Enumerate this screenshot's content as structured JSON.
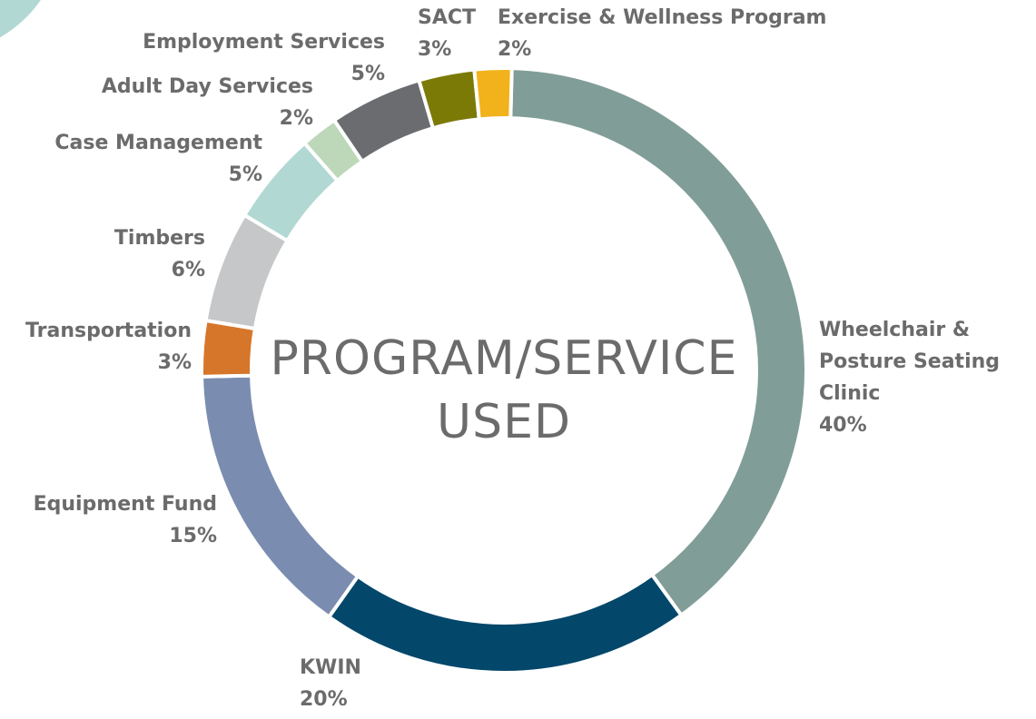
{
  "chart_data": {
    "type": "donut",
    "title": "PROGRAM/SERVICE USED",
    "categories": [
      "Wheelchair & Posture Seating Clinic",
      "KWIN",
      "Equipment Fund",
      "Transportation",
      "Timbers",
      "Case Management",
      "Adult Day Services",
      "Employment Services",
      "SACT",
      "Exercise & Wellness Program"
    ],
    "values": [
      40,
      20,
      15,
      3,
      6,
      5,
      2,
      5,
      3,
      2
    ],
    "value_labels": [
      "40%",
      "20%",
      "15%",
      "3%",
      "6%",
      "5%",
      "2%",
      "5%",
      "3%",
      "2%"
    ],
    "colors": [
      "#819d97",
      "#03476b",
      "#7a8db0",
      "#d6762a",
      "#c6c7c8",
      "#b2d8d3",
      "#bcd8b8",
      "#6b6c70",
      "#7c7a07",
      "#f2b21b"
    ]
  }
}
